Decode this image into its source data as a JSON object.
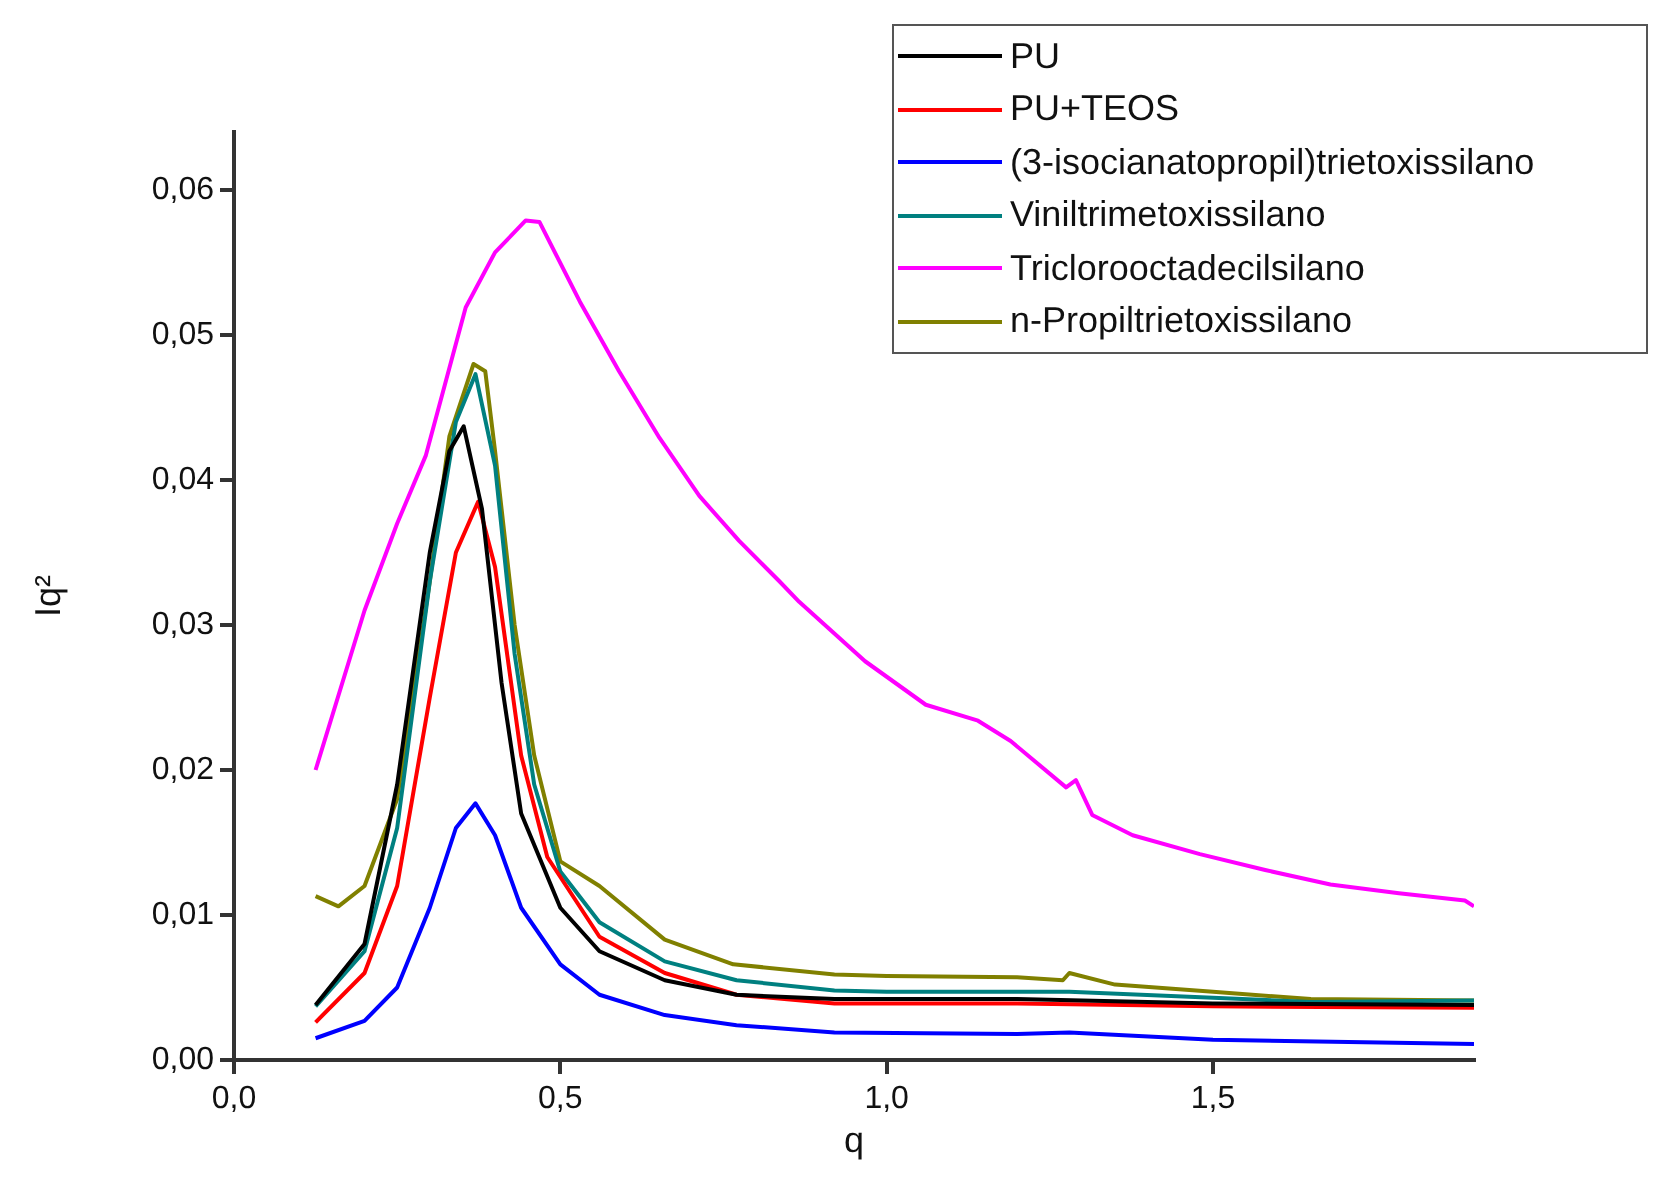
{
  "chart_data": {
    "type": "line",
    "xlabel": "q",
    "ylabel": "Iq²",
    "xlim": [
      0,
      1.9
    ],
    "ylim": [
      0,
      0.064
    ],
    "xticks": [
      {
        "value": 0,
        "label": "0,0"
      },
      {
        "value": 0.5,
        "label": "0,5"
      },
      {
        "value": 1,
        "label": "1,0"
      },
      {
        "value": 1.5,
        "label": "1,5"
      }
    ],
    "yticks": [
      {
        "value": 0,
        "label": "0,00"
      },
      {
        "value": 0.01,
        "label": "0,01"
      },
      {
        "value": 0.02,
        "label": "0,02"
      },
      {
        "value": 0.03,
        "label": "0,03"
      },
      {
        "value": 0.04,
        "label": "0,04"
      },
      {
        "value": 0.05,
        "label": "0,05"
      },
      {
        "value": 0.06,
        "label": "0,06"
      }
    ],
    "grid": false,
    "legend": "top right",
    "marker": "none",
    "line_style": "solid",
    "series": [
      {
        "name": "PU",
        "color": "#000000",
        "x": [
          0.125,
          0.2,
          0.25,
          0.3,
          0.33,
          0.352,
          0.38,
          0.41,
          0.44,
          0.5,
          0.56,
          0.66,
          0.77,
          0.92,
          1.2,
          1.5,
          1.9
        ],
        "values": [
          0.0038,
          0.008,
          0.019,
          0.035,
          0.042,
          0.0437,
          0.038,
          0.026,
          0.017,
          0.0105,
          0.0075,
          0.0055,
          0.0045,
          0.0042,
          0.0042,
          0.0039,
          0.0038
        ]
      },
      {
        "name": "PU+TEOS",
        "color": "#ff0000",
        "x": [
          0.125,
          0.2,
          0.25,
          0.3,
          0.34,
          0.374,
          0.4,
          0.44,
          0.48,
          0.56,
          0.66,
          0.77,
          0.92,
          1.2,
          1.5,
          1.9
        ],
        "values": [
          0.0026,
          0.006,
          0.012,
          0.025,
          0.035,
          0.0385,
          0.034,
          0.021,
          0.014,
          0.0085,
          0.006,
          0.0045,
          0.0039,
          0.0039,
          0.0037,
          0.0036
        ]
      },
      {
        "name": "(3-isocianatopropil)trietoxissilano",
        "color": "#0000ff",
        "x": [
          0.125,
          0.2,
          0.25,
          0.3,
          0.34,
          0.37,
          0.4,
          0.44,
          0.5,
          0.56,
          0.66,
          0.77,
          0.92,
          1.2,
          1.28,
          1.5,
          1.9
        ],
        "values": [
          0.0015,
          0.0027,
          0.005,
          0.0105,
          0.016,
          0.0177,
          0.0155,
          0.0105,
          0.0066,
          0.0045,
          0.0031,
          0.0024,
          0.0019,
          0.0018,
          0.0019,
          0.0014,
          0.0011
        ]
      },
      {
        "name": "Viniltrimetoxissilano",
        "color": "#008080",
        "x": [
          0.125,
          0.2,
          0.25,
          0.3,
          0.34,
          0.37,
          0.4,
          0.43,
          0.46,
          0.5,
          0.56,
          0.66,
          0.77,
          0.92,
          1.0,
          1.28,
          1.5,
          1.65,
          1.9
        ],
        "values": [
          0.0037,
          0.0075,
          0.016,
          0.033,
          0.044,
          0.0473,
          0.041,
          0.028,
          0.019,
          0.013,
          0.0095,
          0.0068,
          0.0055,
          0.0048,
          0.0047,
          0.0047,
          0.0043,
          0.004,
          0.0041
        ]
      },
      {
        "name": "Triclorooctadecilsilano",
        "color": "#ff00ff",
        "x": [
          0.125,
          0.2,
          0.25,
          0.294,
          0.355,
          0.4,
          0.447,
          0.468,
          0.53,
          0.59,
          0.652,
          0.713,
          0.774,
          0.836,
          0.866,
          0.967,
          1.06,
          1.14,
          1.19,
          1.275,
          1.29,
          1.315,
          1.377,
          1.48,
          1.58,
          1.68,
          1.785,
          1.886,
          1.9
        ],
        "values": [
          0.02,
          0.031,
          0.037,
          0.0417,
          0.0519,
          0.0557,
          0.0579,
          0.0578,
          0.0523,
          0.0475,
          0.0429,
          0.0389,
          0.0358,
          0.033,
          0.0316,
          0.0275,
          0.0245,
          0.0234,
          0.022,
          0.0188,
          0.0193,
          0.0169,
          0.0155,
          0.0142,
          0.0131,
          0.0121,
          0.0115,
          0.011,
          0.0106
        ]
      },
      {
        "name": "n-Propiltrietoxissilano",
        "color": "#808000",
        "x": [
          0.125,
          0.16,
          0.2,
          0.25,
          0.3,
          0.33,
          0.367,
          0.385,
          0.4,
          0.43,
          0.46,
          0.5,
          0.56,
          0.66,
          0.765,
          0.92,
          1.0,
          1.2,
          1.27,
          1.28,
          1.35,
          1.5,
          1.65,
          1.9
        ],
        "values": [
          0.0113,
          0.0106,
          0.012,
          0.018,
          0.033,
          0.043,
          0.048,
          0.0475,
          0.042,
          0.03,
          0.021,
          0.0137,
          0.012,
          0.0083,
          0.0066,
          0.0059,
          0.0058,
          0.0057,
          0.0055,
          0.006,
          0.0052,
          0.0047,
          0.0042,
          0.0041
        ]
      }
    ]
  }
}
